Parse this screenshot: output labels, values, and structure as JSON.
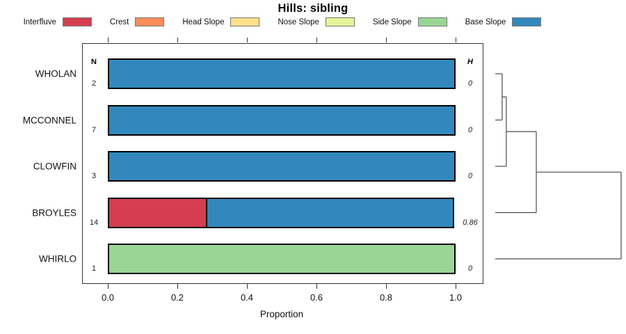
{
  "chart_data": {
    "type": "bar",
    "orientation": "horizontal-stacked",
    "title": "Hills: sibling",
    "xlabel": "Proportion",
    "xlim": [
      0,
      1
    ],
    "xticks": [
      "0.0",
      "0.2",
      "0.4",
      "0.6",
      "0.8",
      "1.0"
    ],
    "grid": false,
    "legend_position": "top",
    "legend": [
      {
        "label": "Interfluve",
        "color": "#d53e4f"
      },
      {
        "label": "Crest",
        "color": "#fc8d59"
      },
      {
        "label": "Head Slope",
        "color": "#fee08b"
      },
      {
        "label": "Nose Slope",
        "color": "#e6f598"
      },
      {
        "label": "Side Slope",
        "color": "#99d594"
      },
      {
        "label": "Base Slope",
        "color": "#3288bd"
      }
    ],
    "columns": {
      "n_header": "N",
      "h_header": "H"
    },
    "rows": [
      {
        "label": "WHOLAN",
        "n": "2",
        "h": "0",
        "segments": [
          {
            "class": "Base Slope",
            "value": 1.0
          }
        ]
      },
      {
        "label": "MCCONNEL",
        "n": "7",
        "h": "0",
        "segments": [
          {
            "class": "Base Slope",
            "value": 1.0
          }
        ]
      },
      {
        "label": "CLOWFIN",
        "n": "3",
        "h": "0",
        "segments": [
          {
            "class": "Base Slope",
            "value": 1.0
          }
        ]
      },
      {
        "label": "BROYLES",
        "n": "14",
        "h": "0.86",
        "segments": [
          {
            "class": "Interfluve",
            "value": 0.286
          },
          {
            "class": "Base Slope",
            "value": 0.714
          }
        ]
      },
      {
        "label": "WHIRLO",
        "n": "1",
        "h": "0",
        "segments": [
          {
            "class": "Side Slope",
            "value": 1.0
          }
        ]
      }
    ],
    "dendrogram": {
      "leaf_order": [
        "WHOLAN",
        "MCCONNEL",
        "CLOWFIN",
        "BROYLES",
        "WHIRLO"
      ],
      "units": "x = merge height fraction of panel width (0-1), y = row index (0-4)",
      "segments": [
        [
          0,
          0,
          0.055,
          0
        ],
        [
          0.055,
          0,
          0.055,
          1
        ],
        [
          0,
          1,
          0.055,
          1
        ],
        [
          0.055,
          0.5,
          0.088,
          0.5
        ],
        [
          0.088,
          0.5,
          0.088,
          2
        ],
        [
          0,
          2,
          0.088,
          2
        ],
        [
          0.088,
          1.25,
          0.326,
          1.25
        ],
        [
          0.326,
          1.25,
          0.326,
          3
        ],
        [
          0,
          3,
          0.326,
          3
        ],
        [
          0.326,
          2.125,
          1.0,
          2.125
        ],
        [
          1.0,
          2.125,
          1.0,
          4
        ],
        [
          0,
          4,
          1.0,
          4
        ]
      ],
      "line_color": "#4a4a4a"
    }
  }
}
